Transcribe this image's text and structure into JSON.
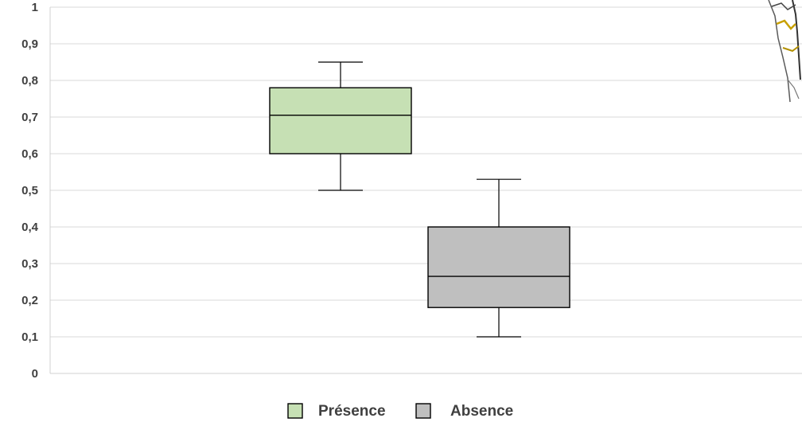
{
  "chart_data": {
    "type": "box",
    "title": "",
    "xlabel": "",
    "ylabel": "",
    "ylim": [
      0,
      1
    ],
    "yticks": [
      "0",
      "0,1",
      "0,2",
      "0,3",
      "0,4",
      "0,5",
      "0,6",
      "0,7",
      "0,8",
      "0,9",
      "1"
    ],
    "grid": true,
    "legend_position": "bottom",
    "series": [
      {
        "name": "Présence",
        "color": "#c6e0b4",
        "whisker_low": 0.5,
        "q1": 0.6,
        "median": 0.705,
        "q3": 0.78,
        "whisker_high": 0.85
      },
      {
        "name": "Absence",
        "color": "#bfbfbf",
        "whisker_low": 0.1,
        "q1": 0.18,
        "median": 0.265,
        "q3": 0.4,
        "whisker_high": 0.53
      }
    ]
  }
}
